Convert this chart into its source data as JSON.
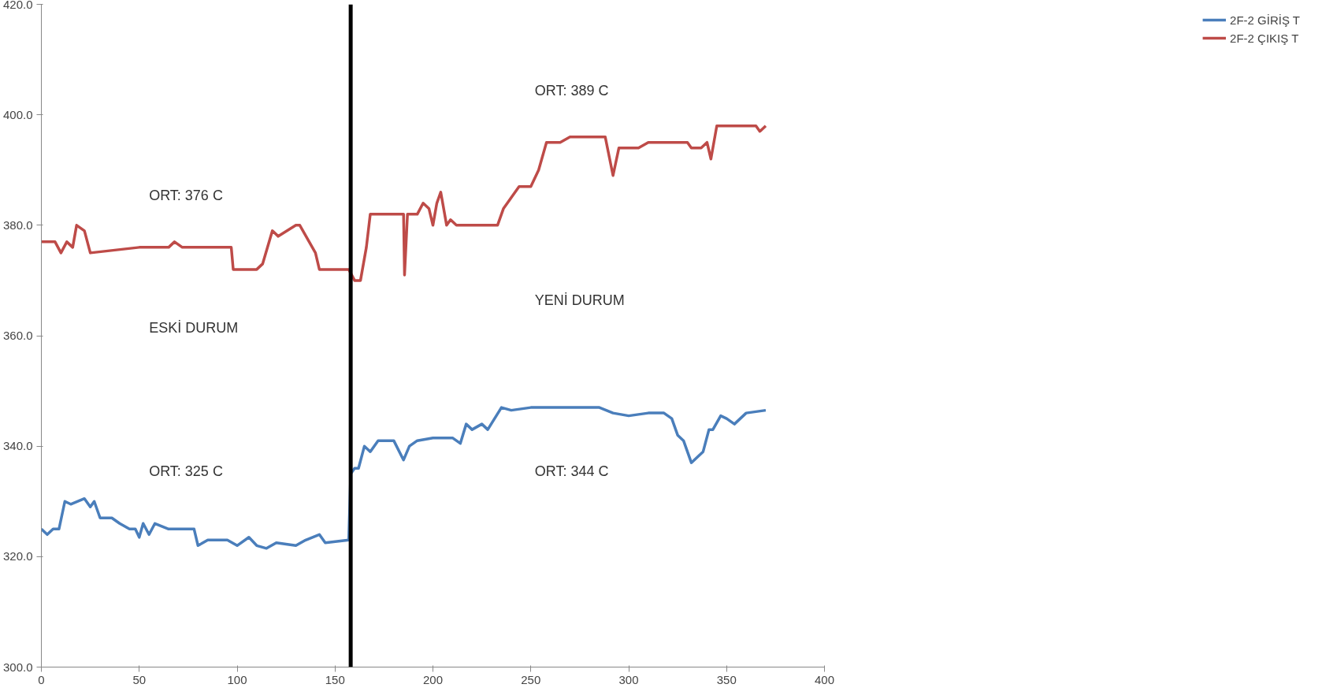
{
  "chart_data": {
    "type": "line",
    "xlim": [
      0,
      400
    ],
    "xticks": [
      0,
      50,
      100,
      150,
      200,
      250,
      300,
      350,
      400
    ],
    "ylim": [
      300,
      420
    ],
    "yticks": [
      {
        "value": 300,
        "label": "300.0"
      },
      {
        "value": 320,
        "label": "320.0"
      },
      {
        "value": 340,
        "label": "340.0"
      },
      {
        "value": 360,
        "label": "360.0"
      },
      {
        "value": 380,
        "label": "380.0"
      },
      {
        "value": 400,
        "label": "400.0"
      },
      {
        "value": 420,
        "label": "420.0"
      }
    ],
    "grid": false,
    "legend": "right",
    "line_style": "solid",
    "marker": "none",
    "annotations": [
      "ORT: 376 C",
      "ESKİ DURUM",
      "ORT: 325 C",
      "ORT: 389 C",
      "YENİ DURUM",
      "ORT: 344 C"
    ],
    "ref_lines": [
      {
        "axis": "x",
        "value": 158,
        "label": null,
        "color": "#000000"
      }
    ],
    "series": [
      {
        "name": "2F-2 GİRİŞ T",
        "color": "#4a7ebb",
        "x": [
          0,
          3,
          6,
          9,
          12,
          15,
          22,
          25,
          27,
          30,
          36,
          40,
          45,
          48,
          50,
          52,
          55,
          58,
          65,
          78,
          80,
          85,
          95,
          100,
          106,
          110,
          115,
          120,
          130,
          135,
          142,
          145,
          157,
          158,
          160,
          162,
          165,
          168,
          172,
          180,
          185,
          188,
          192,
          200,
          210,
          214,
          217,
          220,
          225,
          228,
          235,
          240,
          250,
          270,
          285,
          292,
          300,
          310,
          318,
          322,
          325,
          328,
          332,
          335,
          338,
          341,
          343,
          347,
          350,
          354,
          360,
          370
        ],
        "values": [
          325,
          324,
          325,
          325,
          330,
          329.5,
          330.5,
          329,
          330,
          327,
          327,
          326,
          325,
          325,
          323.5,
          326,
          324,
          326,
          325,
          325,
          322,
          323,
          323,
          322,
          323.5,
          322,
          321.5,
          322.5,
          322,
          323,
          324,
          322.5,
          323,
          335,
          336,
          336,
          340,
          339,
          341,
          341,
          337.5,
          340,
          341,
          341.5,
          341.5,
          340.5,
          344,
          343,
          344,
          343,
          347,
          346.5,
          347,
          347,
          347,
          346,
          345.5,
          346,
          346,
          345,
          342,
          341,
          337,
          338,
          339,
          343,
          343,
          345.5,
          345,
          344,
          346,
          346.5
        ]
      },
      {
        "name": "2F-2 ÇIKIŞ T",
        "color": "#be4b48",
        "x": [
          0,
          7,
          10,
          13,
          16,
          18,
          22,
          25,
          50,
          65,
          68,
          72,
          97,
          98,
          110,
          113,
          118,
          121,
          130,
          132,
          140,
          142,
          157,
          160,
          163,
          166,
          168,
          185,
          185.5,
          187,
          192,
          195,
          198,
          200,
          202,
          204,
          207,
          209,
          212,
          233,
          236,
          240,
          244,
          250,
          254,
          258,
          265,
          270,
          288,
          292,
          295,
          305,
          310,
          330,
          332,
          337,
          340,
          342,
          345,
          365,
          367,
          370
        ],
        "values": [
          377,
          377,
          375,
          377,
          376,
          380,
          379,
          375,
          376,
          376,
          377,
          376,
          376,
          372,
          372,
          373,
          379,
          378,
          380,
          380,
          375,
          372,
          372,
          370,
          370,
          376,
          382,
          382,
          371,
          382,
          382,
          384,
          383,
          380,
          384,
          386,
          380,
          381,
          380,
          380,
          383,
          385,
          387,
          387,
          390,
          395,
          395,
          396,
          396,
          389,
          394,
          394,
          395,
          395,
          394,
          394,
          395,
          392,
          398,
          398,
          397,
          398
        ]
      }
    ]
  }
}
